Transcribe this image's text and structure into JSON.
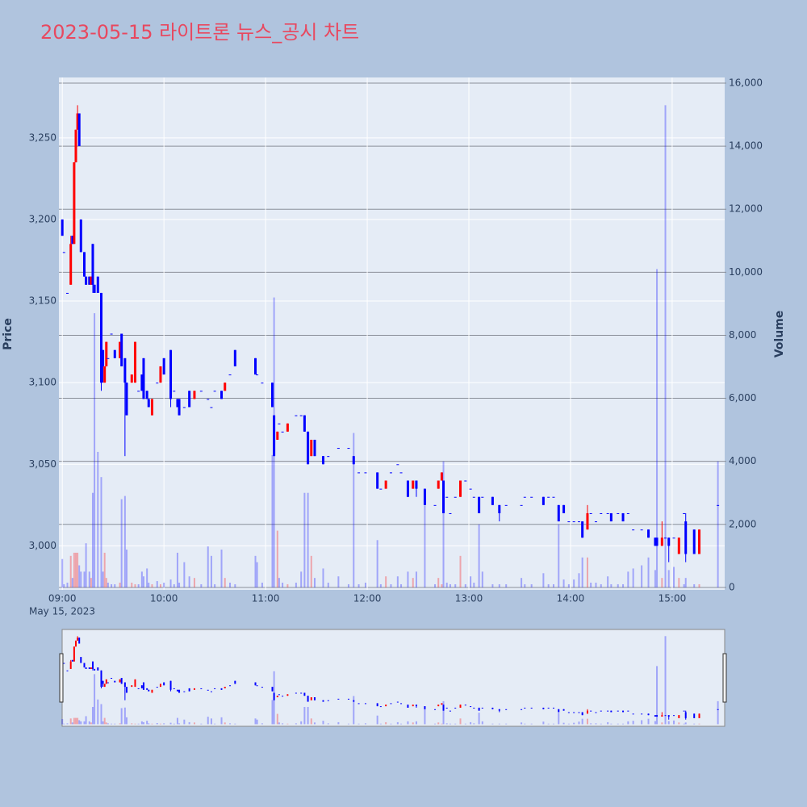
{
  "chart_data": {
    "type": "candlestick",
    "title": "2023-05-15 라이트론 뉴스_공시 차트",
    "ylabel": "Price",
    "y2label": "Volume",
    "date_label": "May 15, 2023",
    "increasing_color": "#ff0000",
    "decreasing_color": "#0000ff",
    "grid": true,
    "rangeslider": true,
    "xlim": [
      "08:58",
      "15:31"
    ],
    "xticks": [
      "09:00",
      "10:00",
      "11:00",
      "12:00",
      "13:00",
      "14:00",
      "15:00"
    ],
    "ylim": [
      2973,
      3287
    ],
    "yticks": [
      {
        "value": 3000,
        "label": "3,000"
      },
      {
        "value": 3050,
        "label": "3,050"
      },
      {
        "value": 3100,
        "label": "3,100"
      },
      {
        "value": 3150,
        "label": "3,150"
      },
      {
        "value": 3200,
        "label": "3,200"
      },
      {
        "value": 3250,
        "label": "3,250"
      }
    ],
    "y2lim": [
      -80,
      16180
    ],
    "y2ticks": [
      0,
      {
        "value": 2000,
        "label": "2,000"
      },
      {
        "value": 4000,
        "label": "4,000"
      },
      {
        "value": 6000,
        "label": "6,000"
      },
      {
        "value": 8000,
        "label": "8,000"
      },
      {
        "value": 10000,
        "label": "10,000"
      },
      {
        "value": 12000,
        "label": "12,000"
      },
      {
        "value": 14000,
        "label": "14,000"
      },
      {
        "value": 16000,
        "label": "16,000"
      }
    ],
    "x": [
      "09:00",
      "09:01",
      "09:03",
      "09:05",
      "09:06",
      "09:07",
      "09:08",
      "09:09",
      "09:10",
      "09:11",
      "09:13",
      "09:14",
      "09:16",
      "09:17",
      "09:18",
      "09:19",
      "09:21",
      "09:23",
      "09:24",
      "09:25",
      "09:26",
      "09:27",
      "09:29",
      "09:31",
      "09:34",
      "09:35",
      "09:37",
      "09:38",
      "09:41",
      "09:43",
      "09:45",
      "09:47",
      "09:48",
      "09:50",
      "09:51",
      "09:53",
      "09:56",
      "09:58",
      "10:00",
      "10:04",
      "10:06",
      "10:08",
      "10:09",
      "10:12",
      "10:15",
      "10:18",
      "10:22",
      "10:26",
      "10:28",
      "10:30",
      "10:34",
      "10:36",
      "10:39",
      "10:42",
      "10:54",
      "10:55",
      "10:58",
      "11:04",
      "11:05",
      "11:07",
      "11:08",
      "11:10",
      "11:13",
      "11:18",
      "11:21",
      "11:23",
      "11:25",
      "11:27",
      "11:29",
      "11:34",
      "11:37",
      "11:43",
      "11:49",
      "11:52",
      "11:55",
      "11:59",
      "12:06",
      "12:08",
      "12:11",
      "12:14",
      "12:18",
      "12:20",
      "12:24",
      "12:27",
      "12:29",
      "12:34",
      "12:40",
      "12:42",
      "12:44",
      "12:45",
      "12:47",
      "12:49",
      "12:52",
      "12:55",
      "12:58",
      "13:01",
      "13:03",
      "13:06",
      "13:08",
      "13:14",
      "13:18",
      "13:22",
      "13:31",
      "13:33",
      "13:37",
      "13:44",
      "13:47",
      "13:50",
      "13:53",
      "13:56",
      "13:59",
      "14:02",
      "14:05",
      "14:07",
      "14:10",
      "14:12",
      "14:15",
      "14:18",
      "14:22",
      "14:24",
      "14:28",
      "14:31",
      "14:34",
      "14:37",
      "14:42",
      "14:46",
      "14:50",
      "14:51",
      "14:54",
      "14:56",
      "14:58",
      "15:01",
      "15:04",
      "15:07",
      "15:08",
      "15:13",
      "15:16",
      "15:27"
    ],
    "open": [
      3200,
      3180,
      3155,
      3160,
      3190,
      3185,
      3235,
      3255,
      3265,
      3200,
      3180,
      3165,
      3165,
      3160,
      3185,
      3160,
      3165,
      3155,
      3120,
      3100,
      3110,
      3115,
      3130,
      3120,
      3115,
      3130,
      3115,
      3100,
      3100,
      3100,
      3095,
      3105,
      3115,
      3095,
      3090,
      3080,
      3100,
      3100,
      3115,
      3120,
      3095,
      3090,
      3090,
      3085,
      3095,
      3090,
      3095,
      3090,
      3085,
      3095,
      3095,
      3095,
      3105,
      3120,
      3115,
      3105,
      3100,
      3100,
      3080,
      3065,
      3075,
      3070,
      3070,
      3080,
      3080,
      3080,
      3070,
      3055,
      3065,
      3055,
      3055,
      3060,
      3060,
      3055,
      3045,
      3045,
      3045,
      3035,
      3035,
      3045,
      3050,
      3045,
      3040,
      3035,
      3040,
      3035,
      3025,
      3035,
      3040,
      3040,
      3030,
      3020,
      3030,
      3030,
      3040,
      3035,
      3030,
      3030,
      3030,
      3030,
      3025,
      3025,
      3025,
      3030,
      3030,
      3030,
      3030,
      3030,
      3025,
      3025,
      3015,
      3015,
      3015,
      3015,
      3010,
      3020,
      3015,
      3020,
      3020,
      3020,
      3020,
      3020,
      3020,
      3010,
      3010,
      3010,
      3005,
      3005,
      3000,
      3005,
      3005,
      3005,
      2995,
      3020,
      3015,
      3010,
      2995,
      3025
    ],
    "high": [
      3200,
      3180,
      3155,
      3190,
      3190,
      3235,
      3255,
      3270,
      3265,
      3200,
      3180,
      3165,
      3165,
      3165,
      3185,
      3160,
      3165,
      3155,
      3120,
      3110,
      3125,
      3115,
      3130,
      3120,
      3125,
      3130,
      3115,
      3100,
      3105,
      3125,
      3095,
      3105,
      3115,
      3095,
      3090,
      3090,
      3100,
      3110,
      3115,
      3120,
      3095,
      3090,
      3090,
      3085,
      3095,
      3095,
      3095,
      3090,
      3085,
      3095,
      3095,
      3100,
      3105,
      3120,
      3115,
      3105,
      3100,
      3100,
      3080,
      3070,
      3075,
      3070,
      3075,
      3080,
      3080,
      3080,
      3070,
      3065,
      3065,
      3055,
      3055,
      3060,
      3060,
      3055,
      3045,
      3045,
      3045,
      3035,
      3040,
      3045,
      3050,
      3045,
      3040,
      3040,
      3040,
      3035,
      3025,
      3040,
      3045,
      3040,
      3030,
      3020,
      3030,
      3040,
      3040,
      3035,
      3030,
      3030,
      3030,
      3030,
      3025,
      3025,
      3025,
      3030,
      3030,
      3030,
      3030,
      3030,
      3025,
      3025,
      3015,
      3015,
      3015,
      3015,
      3025,
      3020,
      3015,
      3020,
      3020,
      3020,
      3020,
      3020,
      3020,
      3010,
      3010,
      3010,
      3005,
      3005,
      3015,
      3005,
      3005,
      3005,
      3005,
      3020,
      3020,
      3010,
      3010,
      3025
    ],
    "low": [
      3190,
      3180,
      3155,
      3160,
      3185,
      3185,
      3235,
      3255,
      3245,
      3180,
      3165,
      3160,
      3160,
      3160,
      3155,
      3155,
      3155,
      3095,
      3100,
      3100,
      3110,
      3115,
      3130,
      3115,
      3115,
      3110,
      3055,
      3080,
      3100,
      3100,
      3095,
      3095,
      3090,
      3090,
      3085,
      3080,
      3100,
      3100,
      3105,
      3085,
      3095,
      3085,
      3080,
      3085,
      3085,
      3090,
      3095,
      3090,
      3085,
      3095,
      3090,
      3095,
      3105,
      3110,
      3105,
      3105,
      3100,
      3085,
      3055,
      3065,
      3075,
      3070,
      3070,
      3080,
      3080,
      3070,
      3050,
      3055,
      3055,
      3050,
      3055,
      3060,
      3060,
      3050,
      3045,
      3045,
      3035,
      3035,
      3035,
      3045,
      3050,
      3045,
      3030,
      3035,
      3030,
      3025,
      3025,
      3035,
      3040,
      3020,
      3030,
      3020,
      3030,
      3030,
      3040,
      3035,
      3030,
      3020,
      3030,
      3025,
      3015,
      3025,
      3025,
      3030,
      3030,
      3025,
      3030,
      3030,
      3015,
      3020,
      3015,
      3015,
      3015,
      3005,
      3010,
      3020,
      3015,
      3020,
      3020,
      3015,
      3020,
      3015,
      3020,
      3010,
      3010,
      3005,
      3000,
      3000,
      3000,
      3005,
      2990,
      3005,
      2995,
      3020,
      2990,
      2995,
      2995,
      3025
    ],
    "close": [
      3190,
      3180,
      3155,
      3185,
      3185,
      3235,
      3255,
      3265,
      3245,
      3180,
      3165,
      3160,
      3160,
      3165,
      3160,
      3155,
      3155,
      3100,
      3110,
      3110,
      3125,
      3115,
      3130,
      3115,
      3125,
      3110,
      3100,
      3080,
      3105,
      3125,
      3095,
      3095,
      3090,
      3090,
      3085,
      3090,
      3100,
      3110,
      3105,
      3090,
      3095,
      3085,
      3080,
      3085,
      3085,
      3095,
      3095,
      3090,
      3085,
      3095,
      3090,
      3100,
      3105,
      3110,
      3105,
      3105,
      3100,
      3085,
      3055,
      3070,
      3075,
      3070,
      3075,
      3080,
      3080,
      3070,
      3050,
      3065,
      3055,
      3050,
      3055,
      3060,
      3060,
      3050,
      3045,
      3045,
      3035,
      3035,
      3040,
      3045,
      3050,
      3045,
      3030,
      3040,
      3035,
      3025,
      3025,
      3040,
      3045,
      3020,
      3030,
      3020,
      3030,
      3040,
      3040,
      3035,
      3030,
      3020,
      3030,
      3025,
      3020,
      3025,
      3025,
      3030,
      3030,
      3025,
      3030,
      3030,
      3015,
      3020,
      3015,
      3015,
      3015,
      3005,
      3020,
      3020,
      3015,
      3020,
      3020,
      3015,
      3020,
      3015,
      3020,
      3010,
      3010,
      3005,
      3000,
      3000,
      3005,
      3005,
      3000,
      3005,
      3005,
      3020,
      2995,
      2995,
      3010,
      3025
    ],
    "volume": [
      900,
      100,
      150,
      1000,
      300,
      1100,
      1100,
      1100,
      700,
      500,
      500,
      1400,
      500,
      300,
      3000,
      8700,
      4300,
      3500,
      500,
      1100,
      300,
      150,
      100,
      100,
      150,
      2800,
      2900,
      1200,
      150,
      100,
      100,
      500,
      350,
      600,
      150,
      100,
      200,
      100,
      150,
      250,
      100,
      1100,
      150,
      800,
      350,
      300,
      100,
      1300,
      1000,
      100,
      1200,
      300,
      150,
      100,
      1000,
      800,
      150,
      4200,
      9200,
      1800,
      300,
      150,
      100,
      150,
      500,
      3000,
      3000,
      1000,
      300,
      600,
      150,
      350,
      100,
      4900,
      100,
      150,
      1500,
      100,
      350,
      100,
      350,
      100,
      500,
      300,
      500,
      2600,
      100,
      300,
      100,
      4000,
      150,
      100,
      100,
      1000,
      100,
      350,
      150,
      2000,
      500,
      100,
      100,
      100,
      300,
      100,
      100,
      450,
      100,
      100,
      2000,
      250,
      100,
      250,
      450,
      950,
      950,
      150,
      150,
      100,
      350,
      100,
      100,
      100,
      500,
      600,
      700,
      950,
      550,
      10100,
      300,
      15300,
      550,
      650,
      300,
      100,
      300,
      100,
      100,
      4000
    ]
  }
}
